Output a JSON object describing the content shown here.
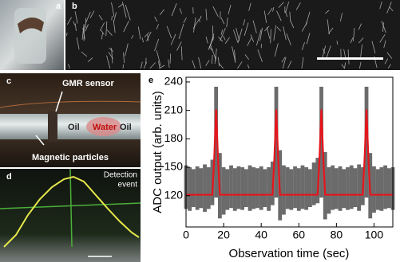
{
  "panels": {
    "a": {
      "label": "a"
    },
    "b": {
      "label": "b"
    },
    "c": {
      "label": "c",
      "sensor": "GMR sensor",
      "oil_left": "Oil",
      "water": "Water",
      "oil_right": "Oil",
      "particles": "Magnetic particles"
    },
    "d": {
      "label": "d",
      "event_line1": "Detection",
      "event_line2": "event"
    },
    "e": {
      "label": "e"
    }
  },
  "chart_data": {
    "type": "line",
    "xlabel": "Observation time (sec)",
    "ylabel": "ADC output (arb. units)",
    "xlim": [
      0,
      110
    ],
    "ylim": [
      87,
      245
    ],
    "xticks": [
      0,
      20,
      40,
      60,
      80,
      100
    ],
    "yticks": [
      120,
      150,
      180,
      210,
      240
    ],
    "raw": {
      "color": "#6b6b6b",
      "x": [
        0,
        2,
        4,
        6,
        8,
        10,
        12,
        14,
        16,
        18,
        20,
        22,
        24,
        26,
        28,
        30,
        32,
        34,
        36,
        38,
        40,
        42,
        44,
        46,
        48,
        50,
        52,
        54,
        56,
        58,
        60,
        62,
        64,
        66,
        68,
        70,
        72,
        74,
        76,
        78,
        80,
        82,
        84,
        86,
        88,
        90,
        92,
        94,
        96,
        98,
        100,
        102,
        104,
        106,
        108,
        110
      ],
      "high": [
        152,
        150,
        148,
        151,
        149,
        153,
        150,
        158,
        235,
        165,
        150,
        148,
        152,
        149,
        151,
        150,
        148,
        152,
        150,
        149,
        151,
        148,
        150,
        156,
        235,
        168,
        152,
        150,
        148,
        151,
        149,
        152,
        150,
        148,
        155,
        160,
        235,
        166,
        150,
        152,
        149,
        151,
        148,
        150,
        152,
        149,
        153,
        150,
        235,
        165,
        151,
        148,
        150,
        152,
        149,
        150
      ],
      "low": [
        106,
        104,
        108,
        105,
        107,
        103,
        106,
        110,
        118,
        96,
        100,
        105,
        107,
        104,
        106,
        105,
        108,
        104,
        106,
        107,
        105,
        108,
        104,
        110,
        118,
        94,
        100,
        106,
        105,
        107,
        104,
        106,
        105,
        108,
        110,
        112,
        118,
        95,
        101,
        105,
        106,
        104,
        107,
        105,
        106,
        108,
        104,
        110,
        118,
        96,
        102,
        105,
        104,
        106,
        107,
        105
      ]
    },
    "fit": {
      "color": "#e8141b",
      "x": [
        0,
        14,
        15,
        16,
        17,
        18,
        46,
        47,
        48,
        49,
        50,
        70,
        71,
        72,
        73,
        74,
        94,
        95,
        96,
        97,
        98,
        110
      ],
      "values": [
        121,
        121,
        160,
        211,
        160,
        121,
        121,
        160,
        211,
        160,
        121,
        121,
        160,
        211,
        160,
        121,
        121,
        160,
        211,
        160,
        121,
        121
      ]
    }
  }
}
